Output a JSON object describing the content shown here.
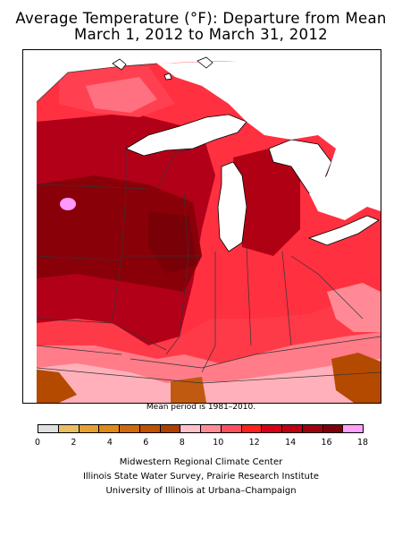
{
  "title": {
    "line1": "Average Temperature (°F): Departure from Mean",
    "line2": "March 1, 2012 to March 31, 2012"
  },
  "map": {
    "region": "Midwestern United States",
    "variable": "Average Temperature Departure from Mean (°F)",
    "colors": {
      "18_plus": "#ff99ff",
      "16_18": "#800000",
      "14_16": "#a00010",
      "12_14": "#cc0020",
      "10_12": "#ff3344",
      "8_10": "#ff8090",
      "6_8": "#ffb6c1",
      "lake": "#ffffff",
      "brown_low": "#b44a00"
    }
  },
  "mean_note": "Mean period is 1981–2010.",
  "legend": {
    "ticks": [
      "0",
      "2",
      "4",
      "6",
      "8",
      "10",
      "12",
      "14",
      "16",
      "18"
    ],
    "bins": [
      {
        "color": "#e0e0e0"
      },
      {
        "color": "#e8c060"
      },
      {
        "color": "#e6a030"
      },
      {
        "color": "#e08818"
      },
      {
        "color": "#d06a0a"
      },
      {
        "color": "#c05200"
      },
      {
        "color": "#b04000"
      },
      {
        "color": "#ffc0cb"
      },
      {
        "color": "#ff8b95"
      },
      {
        "color": "#ff5060"
      },
      {
        "color": "#ff2020"
      },
      {
        "color": "#d80016"
      },
      {
        "color": "#c00012"
      },
      {
        "color": "#a0000e"
      },
      {
        "color": "#80000a"
      },
      {
        "color": "#ffa0ff"
      }
    ]
  },
  "credits": {
    "line1": "Midwestern Regional Climate Center",
    "line2": "Illinois State Water Survey, Prairie Research Institute",
    "line3": "University of Illinois at Urbana–Champaign"
  }
}
